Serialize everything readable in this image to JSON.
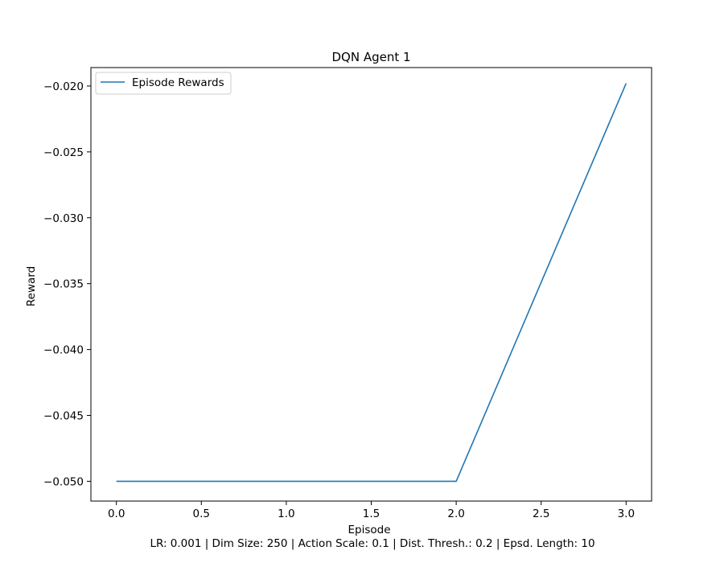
{
  "chart_data": {
    "type": "line",
    "title": "DQN Agent 1",
    "xlabel": "Episode",
    "ylabel": "Reward",
    "caption": "LR: 0.001 | Dim Size: 250 | Action Scale: 0.1 | Dist. Thresh.: 0.2 | Epsd. Length: 10",
    "xlim": [
      -0.15,
      3.15
    ],
    "ylim": [
      -0.0515,
      -0.0186
    ],
    "x_ticks": [
      0.0,
      0.5,
      1.0,
      1.5,
      2.0,
      2.5,
      3.0
    ],
    "x_tick_labels": [
      "0.0",
      "0.5",
      "1.0",
      "1.5",
      "2.0",
      "2.5",
      "3.0"
    ],
    "y_ticks": [
      -0.05,
      -0.045,
      -0.04,
      -0.035,
      -0.03,
      -0.025,
      -0.02
    ],
    "y_tick_labels": [
      "−0.050",
      "−0.045",
      "−0.040",
      "−0.035",
      "−0.030",
      "−0.025",
      "−0.020"
    ],
    "grid": false,
    "legend_position": "top-left",
    "series": [
      {
        "name": "Episode Rewards",
        "color": "#1f77b4",
        "x": [
          0,
          1,
          2,
          3
        ],
        "y": [
          -0.05,
          -0.05,
          -0.05,
          -0.0198
        ]
      }
    ]
  }
}
